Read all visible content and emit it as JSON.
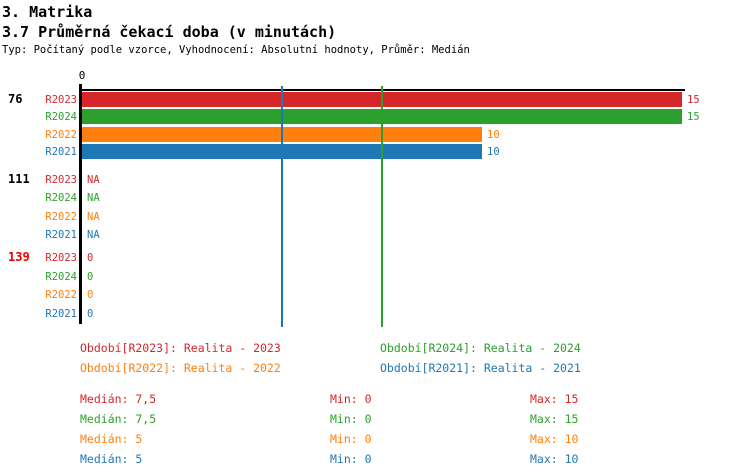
{
  "header": {
    "title": "3. Matrika",
    "subtitle": "3.7 Průměrná čekací doba (v minutách)",
    "meta": "Typ: Počítaný podle vzorce, Vyhodnocení: Absolutní hodnoty, Průměr: Medián"
  },
  "colors": {
    "R2023": "#d62728",
    "R2024": "#2ca02c",
    "R2022": "#ff7f0e",
    "R2021": "#1f77b4",
    "highlight_group": "#ee0000",
    "axis": "#000000",
    "background": "#ffffff"
  },
  "chart_data": {
    "type": "bar",
    "orientation": "horizontal",
    "title": "3.7 Průměrná čekací doba (v minutách)",
    "axis": {
      "origin_label": "0",
      "min": 0,
      "max": 15,
      "grid": "median-lines-only"
    },
    "series_order": [
      "R2023",
      "R2024",
      "R2022",
      "R2021"
    ],
    "groups": [
      {
        "label": "76",
        "label_color": "#000000",
        "rows": [
          {
            "series": "R2023",
            "value": 15,
            "display": "15"
          },
          {
            "series": "R2024",
            "value": 15,
            "display": "15"
          },
          {
            "series": "R2022",
            "value": 10,
            "display": "10"
          },
          {
            "series": "R2021",
            "value": 10,
            "display": "10"
          }
        ]
      },
      {
        "label": "111",
        "label_color": "#000000",
        "rows": [
          {
            "series": "R2023",
            "value": null,
            "display": "NA"
          },
          {
            "series": "R2024",
            "value": null,
            "display": "NA"
          },
          {
            "series": "R2022",
            "value": null,
            "display": "NA"
          },
          {
            "series": "R2021",
            "value": null,
            "display": "NA"
          }
        ]
      },
      {
        "label": "139",
        "label_color": "#ee0000",
        "rows": [
          {
            "series": "R2023",
            "value": 0,
            "display": "0"
          },
          {
            "series": "R2024",
            "value": 0,
            "display": "0"
          },
          {
            "series": "R2022",
            "value": 0,
            "display": "0"
          },
          {
            "series": "R2021",
            "value": 0,
            "display": "0"
          }
        ]
      }
    ],
    "median_lines": [
      {
        "value": 7.5,
        "color": "#2ca02c"
      },
      {
        "value": 5,
        "color": "#1f77b4"
      }
    ]
  },
  "legend": {
    "items": [
      {
        "series": "R2023",
        "label": "Období[R2023]: Realita - 2023"
      },
      {
        "series": "R2024",
        "label": "Období[R2024]: Realita - 2024"
      },
      {
        "series": "R2022",
        "label": "Období[R2022]: Realita - 2022"
      },
      {
        "series": "R2021",
        "label": "Období[R2021]: Realita - 2021"
      }
    ]
  },
  "stats": {
    "rows": [
      {
        "series": "R2023",
        "median": "Medián: 7,5",
        "min": "Min: 0",
        "max": "Max: 15"
      },
      {
        "series": "R2024",
        "median": "Medián: 7,5",
        "min": "Min: 0",
        "max": "Max: 15"
      },
      {
        "series": "R2022",
        "median": "Medián: 5",
        "min": "Min: 0",
        "max": "Max: 10"
      },
      {
        "series": "R2021",
        "median": "Medián: 5",
        "min": "Min: 0",
        "max": "Max: 10"
      }
    ]
  }
}
